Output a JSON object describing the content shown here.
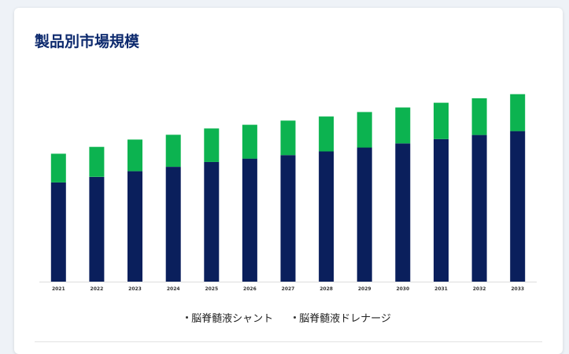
{
  "header": {
    "title": "製品別市場規模"
  },
  "chart_data": {
    "type": "bar",
    "stacked": true,
    "categories": [
      "2021",
      "2022",
      "2023",
      "2024",
      "2025",
      "2026",
      "2027",
      "2028",
      "2029",
      "2030",
      "2031",
      "2032",
      "2033"
    ],
    "series": [
      {
        "name": "脳脊髄液シャント",
        "color": "#0a1f5c",
        "values": [
          48.3,
          51.0,
          53.8,
          55.9,
          58.3,
          59.9,
          61.6,
          63.4,
          65.3,
          67.3,
          69.4,
          71.4,
          73.3
        ]
      },
      {
        "name": "脳脊髄液ドレナージ",
        "color": "#0cb350",
        "values": [
          14.0,
          14.6,
          15.4,
          15.6,
          16.3,
          16.5,
          16.8,
          17.0,
          17.3,
          17.5,
          17.7,
          17.9,
          18.0
        ]
      }
    ],
    "ylim": [
      0,
      95
    ],
    "grid": false,
    "legend_position": "bottom"
  }
}
